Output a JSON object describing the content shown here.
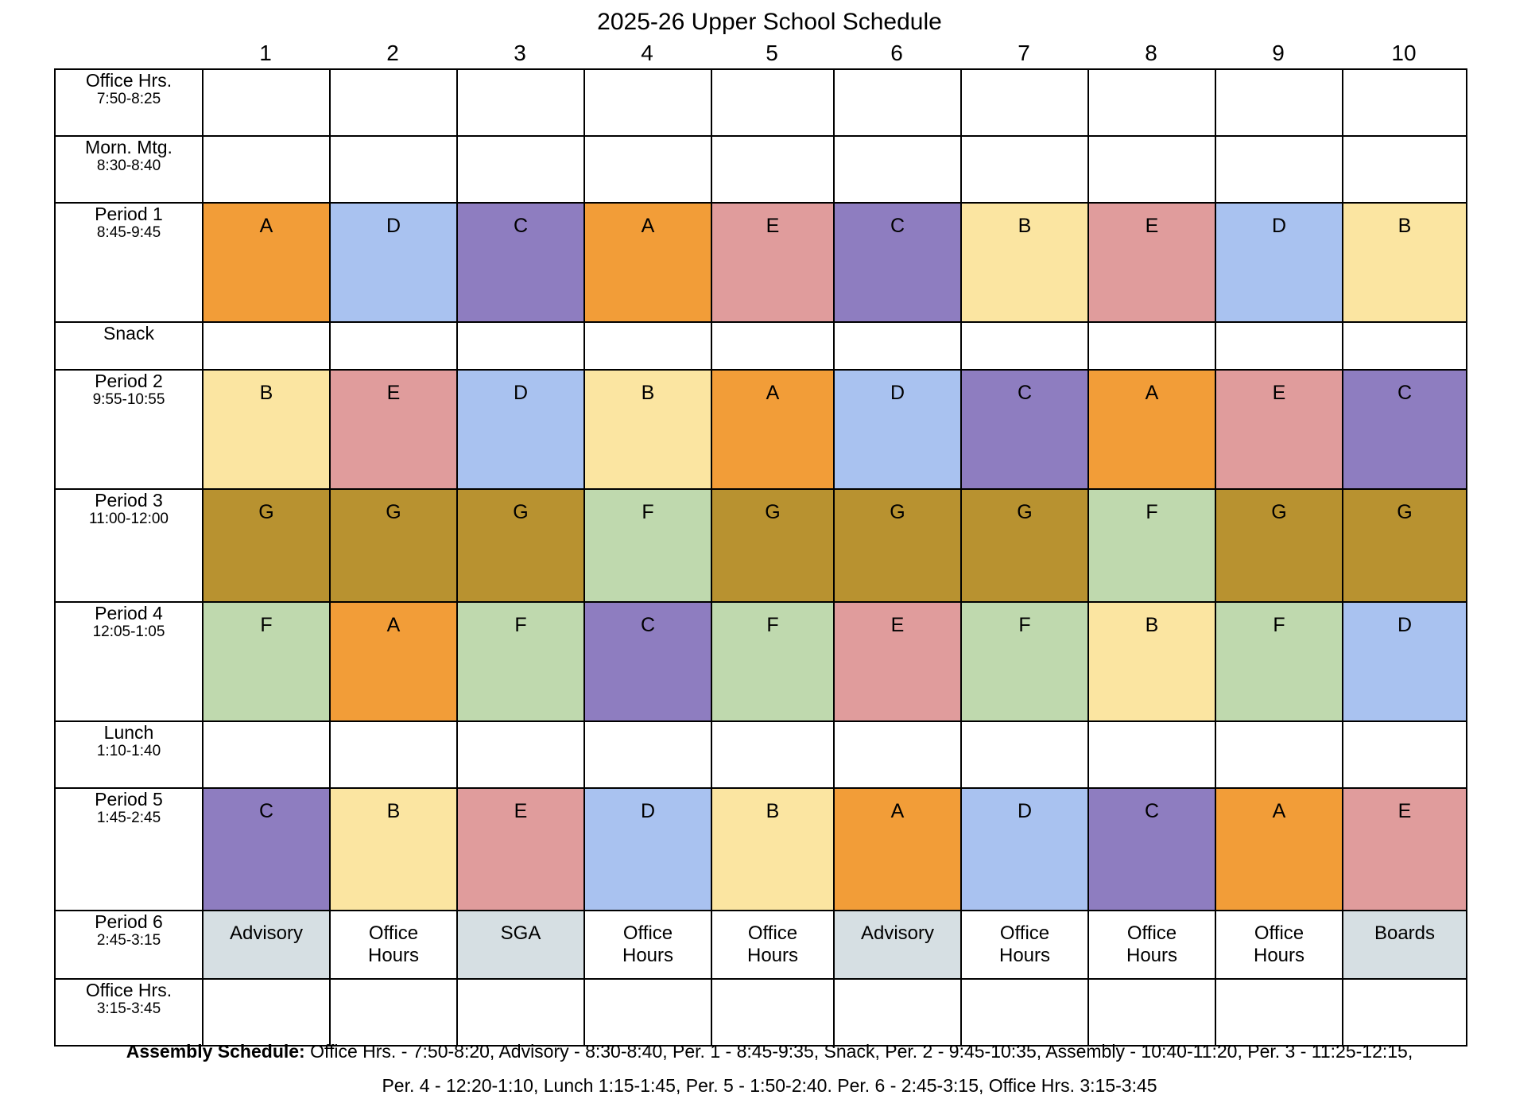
{
  "title": "2025-26 Upper School Schedule",
  "days": [
    "1",
    "2",
    "3",
    "4",
    "5",
    "6",
    "7",
    "8",
    "9",
    "10"
  ],
  "colors": {
    "A": "#F29D38",
    "B": "#FBE5A1",
    "C": "#8E7DC0",
    "D": "#A9C2F0",
    "E": "#E09C9C",
    "F": "#BFD9AE",
    "G": "#B89230",
    "activity": "#D6DFE3",
    "blank": "#FFFFFF"
  },
  "rows": [
    {
      "name": "Office Hrs.",
      "time": "7:50-8:25",
      "cells": [
        "",
        "",
        "",
        "",
        "",
        "",
        "",
        "",
        "",
        ""
      ]
    },
    {
      "name": "Morn. Mtg.",
      "time": "8:30-8:40",
      "cells": [
        "",
        "",
        "",
        "",
        "",
        "",
        "",
        "",
        "",
        ""
      ]
    },
    {
      "name": "Period 1",
      "time": "8:45-9:45",
      "cells": [
        "A",
        "D",
        "C",
        "A",
        "E",
        "C",
        "B",
        "E",
        "D",
        "B"
      ]
    },
    {
      "name": "Snack",
      "time": "",
      "cells": [
        "",
        "",
        "",
        "",
        "",
        "",
        "",
        "",
        "",
        ""
      ]
    },
    {
      "name": "Period 2",
      "time": "9:55-10:55",
      "cells": [
        "B",
        "E",
        "D",
        "B",
        "A",
        "D",
        "C",
        "A",
        "E",
        "C"
      ]
    },
    {
      "name": "Period 3",
      "time": "11:00-12:00",
      "cells": [
        "G",
        "G",
        "G",
        "F",
        "G",
        "G",
        "G",
        "F",
        "G",
        "G"
      ]
    },
    {
      "name": "Period 4",
      "time": "12:05-1:05",
      "cells": [
        "F",
        "A",
        "F",
        "C",
        "F",
        "E",
        "F",
        "B",
        "F",
        "D"
      ]
    },
    {
      "name": "Lunch",
      "time": "1:10-1:40",
      "cells": [
        "",
        "",
        "",
        "",
        "",
        "",
        "",
        "",
        "",
        ""
      ]
    },
    {
      "name": "Period 5",
      "time": "1:45-2:45",
      "cells": [
        "C",
        "B",
        "E",
        "D",
        "B",
        "A",
        "D",
        "C",
        "A",
        "E"
      ]
    },
    {
      "name": "Period 6",
      "time": "2:45-3:15",
      "cells": [
        {
          "line1": "Advisory",
          "line2": "",
          "shade": "activity"
        },
        {
          "line1": "Office",
          "line2": "Hours",
          "shade": "blank"
        },
        {
          "line1": "SGA",
          "line2": "",
          "shade": "activity"
        },
        {
          "line1": "Office",
          "line2": "Hours",
          "shade": "blank"
        },
        {
          "line1": "Office",
          "line2": "Hours",
          "shade": "blank"
        },
        {
          "line1": "Advisory",
          "line2": "",
          "shade": "activity"
        },
        {
          "line1": "Office",
          "line2": "Hours",
          "shade": "blank"
        },
        {
          "line1": "Office",
          "line2": "Hours",
          "shade": "blank"
        },
        {
          "line1": "Office",
          "line2": "Hours",
          "shade": "blank"
        },
        {
          "line1": "Boards",
          "line2": "",
          "shade": "activity"
        }
      ]
    },
    {
      "name": "Office Hrs.",
      "time": "3:15-3:45",
      "cells": [
        "",
        "",
        "",
        "",
        "",
        "",
        "",
        "",
        "",
        ""
      ]
    }
  ],
  "footer": {
    "label": "Assembly Schedule:",
    "line1": " Office Hrs. - 7:50-8:20, Advisory - 8:30-8:40, Per. 1 - 8:45-9:35, Snack, Per. 2 - 9:45-10:35, Assembly - 10:40-11:20, Per. 3 - 11:25-12:15,",
    "line2": "Per. 4 - 12:20-1:10, Lunch 1:15-1:45, Per. 5 - 1:50-2:40. Per. 6 - 2:45-3:15, Office Hrs. 3:15-3:45"
  }
}
